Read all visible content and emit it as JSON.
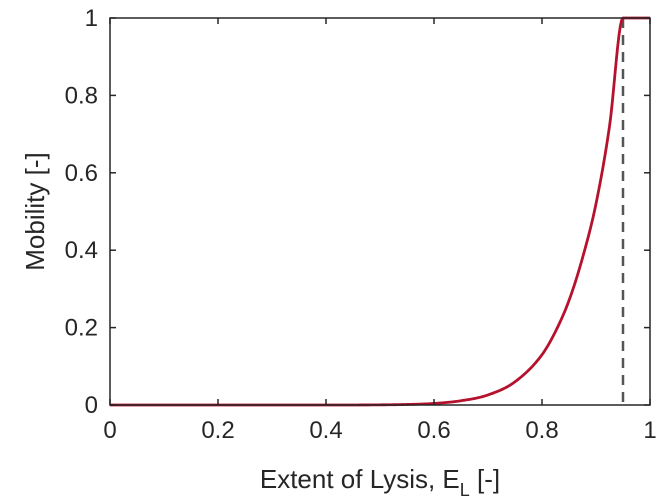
{
  "chart_data": {
    "type": "line",
    "xlabel": "Extent of Lysis, E",
    "xlabel_subscript": "L",
    "xlabel_suffix": " [-]",
    "ylabel": "Mobility [-]",
    "xlim": [
      0,
      1
    ],
    "ylim": [
      0,
      1
    ],
    "xticks": [
      "0",
      "0.2",
      "0.4",
      "0.6",
      "0.8",
      "1"
    ],
    "yticks": [
      "0",
      "0.2",
      "0.4",
      "0.6",
      "0.8",
      "1"
    ],
    "grid": false,
    "box": true,
    "series": [
      {
        "color": "#b5122e",
        "style": "solid",
        "x": [
          0,
          0.1,
          0.2,
          0.3,
          0.4,
          0.5,
          0.55,
          0.6,
          0.65,
          0.7,
          0.75,
          0.8,
          0.825,
          0.85,
          0.875,
          0.9,
          0.925,
          0.95,
          1.0
        ],
        "y": [
          0,
          0,
          0,
          0,
          0,
          0.0004,
          0.0014,
          0.004,
          0.011,
          0.026,
          0.06,
          0.13,
          0.19,
          0.27,
          0.38,
          0.52,
          0.72,
          1.0,
          1.0
        ]
      }
    ],
    "reference_lines": [
      {
        "orientation": "vertical",
        "x": 0.95,
        "color": "#555555",
        "style": "dashed"
      }
    ]
  }
}
